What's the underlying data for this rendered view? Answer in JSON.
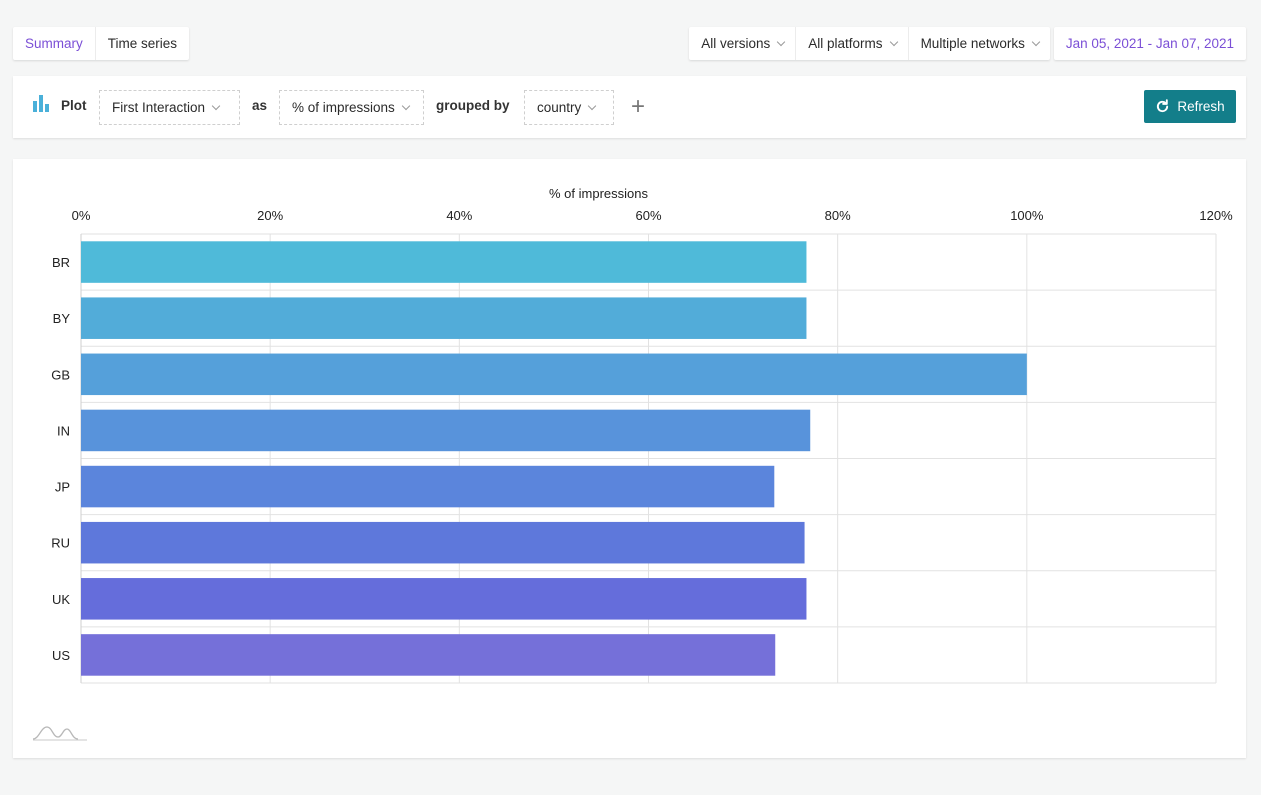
{
  "view_tabs": [
    {
      "label": "Summary",
      "active": true
    },
    {
      "label": "Time series",
      "active": false
    }
  ],
  "filters": {
    "versions": "All versions",
    "platforms": "All platforms",
    "networks": "Multiple networks",
    "date_range": "Jan 05, 2021 - Jan 07, 2021"
  },
  "query": {
    "plot_label": "Plot",
    "metric": "First Interaction",
    "as_label": "as",
    "measure": "% of impressions",
    "grouped_label": "grouped by",
    "group": "country",
    "add_symbol": "+"
  },
  "refresh_label": "Refresh",
  "icons": [
    "bar-chart-icon",
    "chevron-down-icon",
    "plus-icon",
    "refresh-icon",
    "logo-icon"
  ],
  "colors": {
    "accent": "#7b4fd6",
    "refresh": "#137e8a",
    "plot_icon": "#4ab0d9"
  },
  "chart_data": {
    "type": "bar",
    "orientation": "horizontal",
    "xlabel": "% of impressions",
    "xlim": [
      0,
      120
    ],
    "xticks": [
      0,
      20,
      40,
      60,
      80,
      100,
      120
    ],
    "xtick_labels": [
      "0%",
      "20%",
      "40%",
      "60%",
      "80%",
      "100%",
      "120%"
    ],
    "grid": true,
    "categories": [
      "BR",
      "BY",
      "GB",
      "IN",
      "JP",
      "RU",
      "UK",
      "US"
    ],
    "values": [
      76.7,
      76.7,
      100,
      77.1,
      73.3,
      76.5,
      76.7,
      73.4
    ],
    "colors": [
      "#4fbad9",
      "#52acd9",
      "#55a0da",
      "#5893db",
      "#5b85dc",
      "#5e78db",
      "#656ddb",
      "#7570d9"
    ]
  }
}
